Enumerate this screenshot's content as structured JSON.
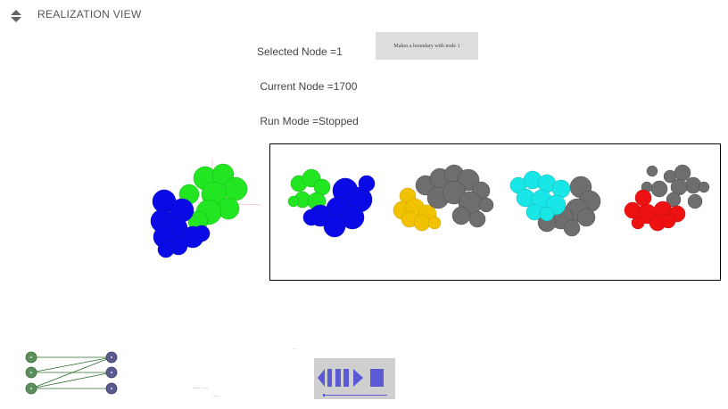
{
  "view": {
    "title": "REALIZATION VIEW",
    "toggle_icon": "collapse-expand-icon"
  },
  "status": {
    "selected_node": "Selected Node =1",
    "current_node": " Current Node =1700",
    "run_mode": " Run Mode =Stopped"
  },
  "tooltip": {
    "text": "Makes a boundary with node 1"
  },
  "colors": {
    "blue": "#0a0ae6",
    "green": "#22e622",
    "gray": "#6e6e6e",
    "yellow": "#f2c200",
    "cyan": "#19e6e6",
    "red": "#ee1111",
    "playback": "#5a5ad6"
  },
  "components_panel": {
    "items": [
      "blue-green",
      "yellow-gray",
      "cyan-gray",
      "red-gray"
    ]
  },
  "graph": {
    "left_nodes": 3,
    "right_nodes": 3
  },
  "labels": {
    "tiny_top": "- - -",
    "tiny_a": "--------- - ------",
    "tiny_b": "-------"
  },
  "playback": {
    "icons": [
      "step-back-icon",
      "pause-icon",
      "play-icon",
      "stop-icon"
    ],
    "progress": 0.03
  }
}
